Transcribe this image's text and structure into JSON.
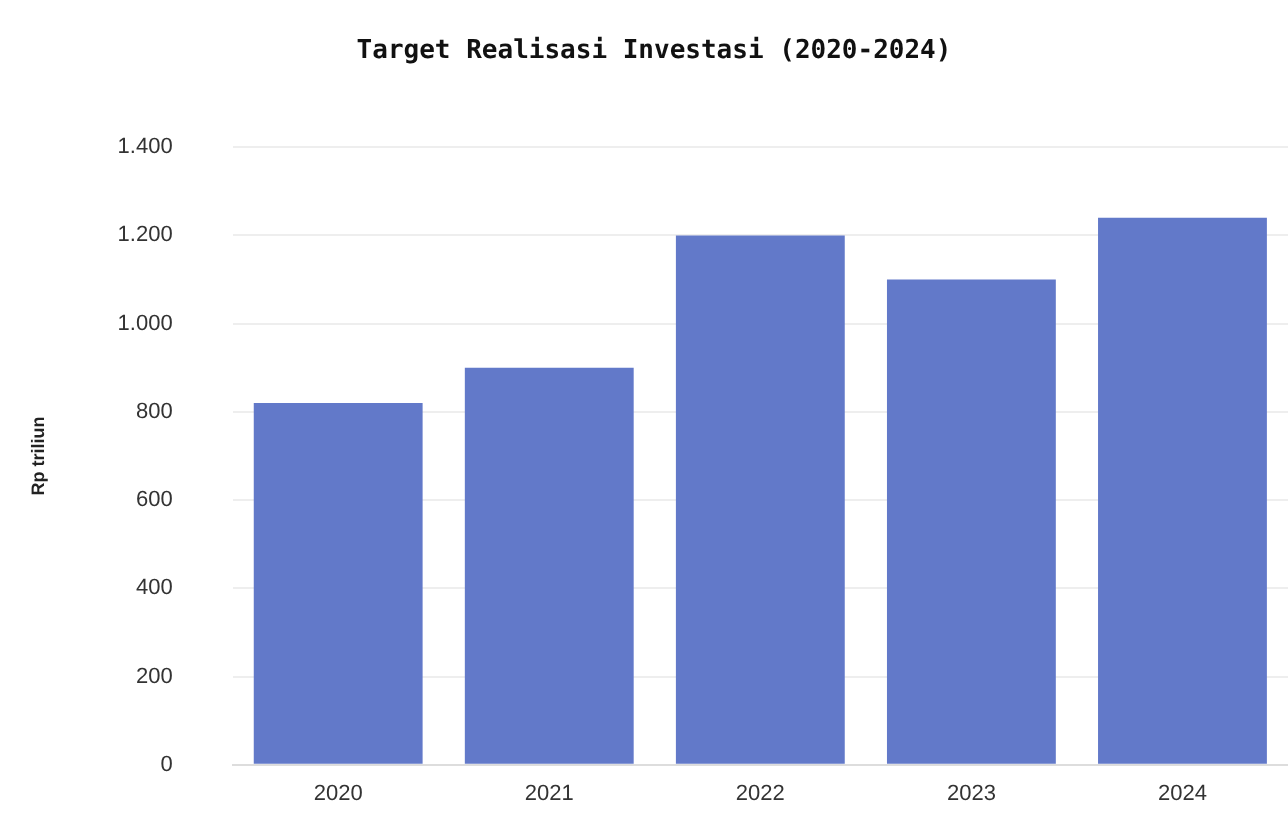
{
  "chart_data": {
    "type": "bar",
    "title": "Target Realisasi Investasi (2020-2024)",
    "ylabel": "Rp triliun",
    "categories": [
      "2020",
      "2021",
      "2022",
      "2023",
      "2024"
    ],
    "values": [
      820,
      900,
      1200,
      1100,
      1240
    ],
    "color": "#6279c9",
    "ylim": [
      0,
      1400
    ],
    "yticks": [
      0,
      200,
      400,
      600,
      800,
      {
        "value": 1000,
        "label": "1.000"
      },
      {
        "value": 1200,
        "label": "1.200"
      },
      {
        "value": 1400,
        "label": "1.400"
      }
    ],
    "grid": "y"
  }
}
